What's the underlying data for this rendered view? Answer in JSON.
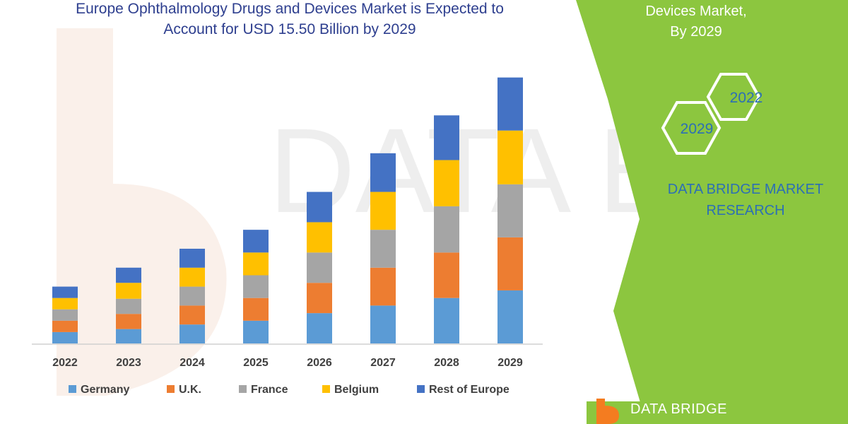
{
  "header": {
    "title_line_1": "Europe Ophthalmology Drugs and Devices Market is Expected to",
    "title_line_2": "Account for USD 15.50 Billion by 2029"
  },
  "side_panel": {
    "caption_line_1": "Devices Market,",
    "caption_line_2": "By 2029",
    "hex_top_label": "2022",
    "hex_bottom_label": "2029",
    "research_line_1": "DATA BRIDGE MARKET",
    "research_line_2": "RESEARCH",
    "accent_color": "#8cc63f"
  },
  "footer": {
    "logo_text": "DATA BRIDGE",
    "logo_color": "#f47c20"
  },
  "chart_data": {
    "type": "bar",
    "stacked": true,
    "title": "Europe Ophthalmology Drugs and Devices Market is Expected to Account for USD 15.50 Billion by 2029",
    "categories": [
      "2022",
      "2023",
      "2024",
      "2025",
      "2026",
      "2027",
      "2028",
      "2029"
    ],
    "series": [
      {
        "name": "Germany",
        "color": "#5b9bd5",
        "values": [
          15,
          19,
          25,
          30,
          40,
          50,
          60,
          70
        ]
      },
      {
        "name": "U.K.",
        "color": "#ed7d31",
        "values": [
          15,
          20,
          25,
          30,
          40,
          50,
          60,
          70
        ]
      },
      {
        "name": "France",
        "color": "#a5a5a5",
        "values": [
          15,
          20,
          25,
          30,
          40,
          50,
          61,
          70
        ]
      },
      {
        "name": "Belgium",
        "color": "#ffc000",
        "values": [
          15,
          21,
          25,
          30,
          40,
          50,
          61,
          71
        ]
      },
      {
        "name": "Rest of Europe",
        "color": "#4472c4",
        "values": [
          15,
          20,
          25,
          30,
          40,
          51,
          59,
          70
        ]
      }
    ],
    "ylim": [
      0,
      360
    ],
    "grid": false,
    "legend_position": "bottom",
    "xlabel": "",
    "ylabel": ""
  }
}
